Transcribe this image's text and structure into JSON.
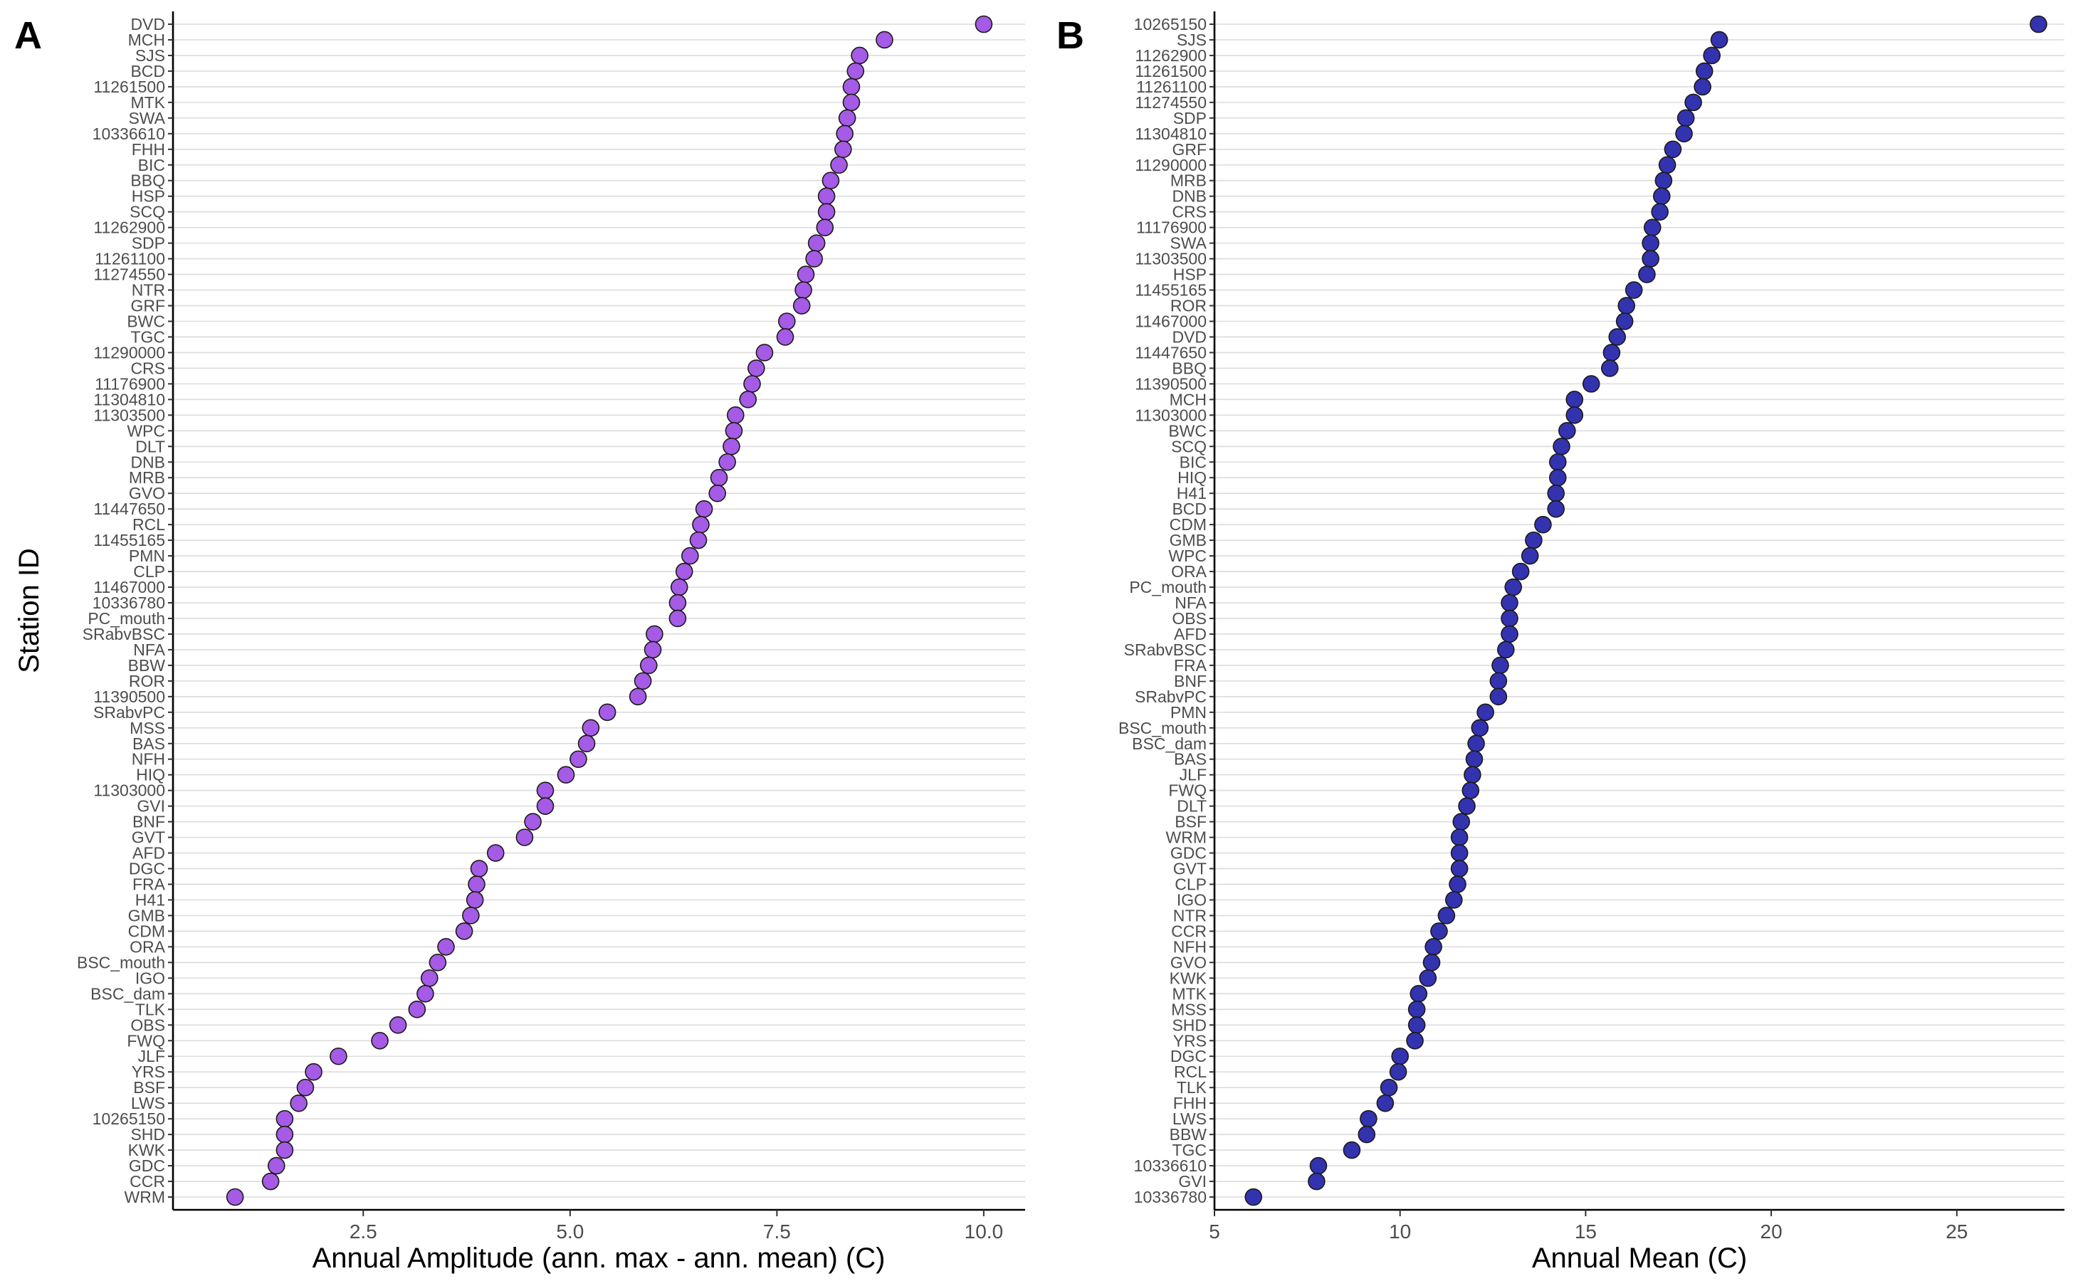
{
  "colors": {
    "panel_a_fill": "#a55be5",
    "panel_b_fill": "#3333b0",
    "point_stroke": "#1a1a1a",
    "grid": "#dcdcdc",
    "axis": "#000000"
  },
  "chart_data": [
    {
      "type": "scatter",
      "panel_label": "A",
      "xlabel": "Annual Amplitude (ann. max - ann. mean) (C)",
      "ylabel": "Station ID",
      "xlim": [
        0.2,
        10.5
      ],
      "xticks": [
        2.5,
        5.0,
        7.5,
        10.0
      ],
      "xtick_labels": [
        "2.5",
        "5.0",
        "7.5",
        "10.0"
      ],
      "grid": "horizontal major gridlines",
      "legend": "none",
      "stations": [
        "DVD",
        "MCH",
        "SJS",
        "BCD",
        "11261500",
        "MTK",
        "SWA",
        "10336610",
        "FHH",
        "BIC",
        "BBQ",
        "HSP",
        "SCQ",
        "11262900",
        "SDP",
        "11261100",
        "11274550",
        "NTR",
        "GRF",
        "BWC",
        "TGC",
        "11290000",
        "CRS",
        "11176900",
        "11304810",
        "11303500",
        "WPC",
        "DLT",
        "DNB",
        "MRB",
        "GVO",
        "11447650",
        "RCL",
        "11455165",
        "PMN",
        "CLP",
        "11467000",
        "10336780",
        "PC_mouth",
        "SRabvBSC",
        "NFA",
        "BBW",
        "ROR",
        "11390500",
        "SRabvPC",
        "MSS",
        "BAS",
        "NFH",
        "HIQ",
        "11303000",
        "GVI",
        "BNF",
        "GVT",
        "AFD",
        "DGC",
        "FRA",
        "H41",
        "GMB",
        "CDM",
        "ORA",
        "BSC_mouth",
        "IGO",
        "BSC_dam",
        "TLK",
        "OBS",
        "FWQ",
        "JLF",
        "YRS",
        "BSF",
        "LWS",
        "10265150",
        "SHD",
        "KWK",
        "GDC",
        "CCR",
        "WRM"
      ],
      "values": [
        10.0,
        8.8,
        8.5,
        8.45,
        8.4,
        8.4,
        8.35,
        8.32,
        8.3,
        8.25,
        8.15,
        8.1,
        8.1,
        8.08,
        7.98,
        7.95,
        7.85,
        7.82,
        7.8,
        7.62,
        7.6,
        7.35,
        7.25,
        7.2,
        7.15,
        7.0,
        6.98,
        6.95,
        6.9,
        6.8,
        6.78,
        6.62,
        6.58,
        6.55,
        6.45,
        6.38,
        6.32,
        6.3,
        6.3,
        6.02,
        6.0,
        5.95,
        5.88,
        5.82,
        5.45,
        5.25,
        5.2,
        5.1,
        4.95,
        4.7,
        4.7,
        4.55,
        4.45,
        4.1,
        3.9,
        3.87,
        3.85,
        3.8,
        3.72,
        3.5,
        3.4,
        3.3,
        3.25,
        3.15,
        2.92,
        2.7,
        2.2,
        1.9,
        1.8,
        1.72,
        1.55,
        1.55,
        1.55,
        1.45,
        1.38,
        0.95
      ]
    },
    {
      "type": "scatter",
      "panel_label": "B",
      "xlabel": "Annual Mean (C)",
      "ylabel": "",
      "xlim": [
        5.0,
        27.9
      ],
      "xticks": [
        5,
        10,
        15,
        20,
        25
      ],
      "xtick_labels": [
        "5",
        "10",
        "15",
        "20",
        "25"
      ],
      "grid": "horizontal major gridlines",
      "legend": "none",
      "stations": [
        "10265150",
        "SJS",
        "11262900",
        "11261500",
        "11261100",
        "11274550",
        "SDP",
        "11304810",
        "GRF",
        "11290000",
        "MRB",
        "DNB",
        "CRS",
        "11176900",
        "SWA",
        "11303500",
        "HSP",
        "11455165",
        "ROR",
        "11467000",
        "DVD",
        "11447650",
        "BBQ",
        "11390500",
        "MCH",
        "11303000",
        "BWC",
        "SCQ",
        "BIC",
        "HIQ",
        "H41",
        "BCD",
        "CDM",
        "GMB",
        "WPC",
        "ORA",
        "PC_mouth",
        "NFA",
        "OBS",
        "AFD",
        "SRabvBSC",
        "FRA",
        "BNF",
        "SRabvPC",
        "PMN",
        "BSC_mouth",
        "BSC_dam",
        "BAS",
        "JLF",
        "FWQ",
        "DLT",
        "BSF",
        "WRM",
        "GDC",
        "GVT",
        "CLP",
        "IGO",
        "NTR",
        "CCR",
        "NFH",
        "GVO",
        "KWK",
        "MTK",
        "MSS",
        "SHD",
        "YRS",
        "DGC",
        "RCL",
        "TLK",
        "FHH",
        "LWS",
        "BBW",
        "TGC",
        "10336610",
        "GVI",
        "10336780"
      ],
      "values": [
        27.2,
        18.6,
        18.4,
        18.2,
        18.15,
        17.9,
        17.7,
        17.65,
        17.35,
        17.2,
        17.1,
        17.05,
        17.0,
        16.8,
        16.75,
        16.75,
        16.65,
        16.3,
        16.1,
        16.05,
        15.85,
        15.7,
        15.65,
        15.15,
        14.7,
        14.7,
        14.5,
        14.35,
        14.25,
        14.25,
        14.2,
        14.2,
        13.85,
        13.6,
        13.5,
        13.25,
        13.05,
        12.95,
        12.95,
        12.95,
        12.85,
        12.7,
        12.65,
        12.65,
        12.3,
        12.15,
        12.05,
        12.0,
        11.95,
        11.9,
        11.8,
        11.65,
        11.6,
        11.6,
        11.6,
        11.55,
        11.45,
        11.25,
        11.05,
        10.9,
        10.85,
        10.75,
        10.5,
        10.45,
        10.45,
        10.4,
        10.0,
        9.95,
        9.7,
        9.6,
        9.15,
        9.1,
        8.7,
        7.8,
        7.75,
        6.05
      ]
    }
  ]
}
